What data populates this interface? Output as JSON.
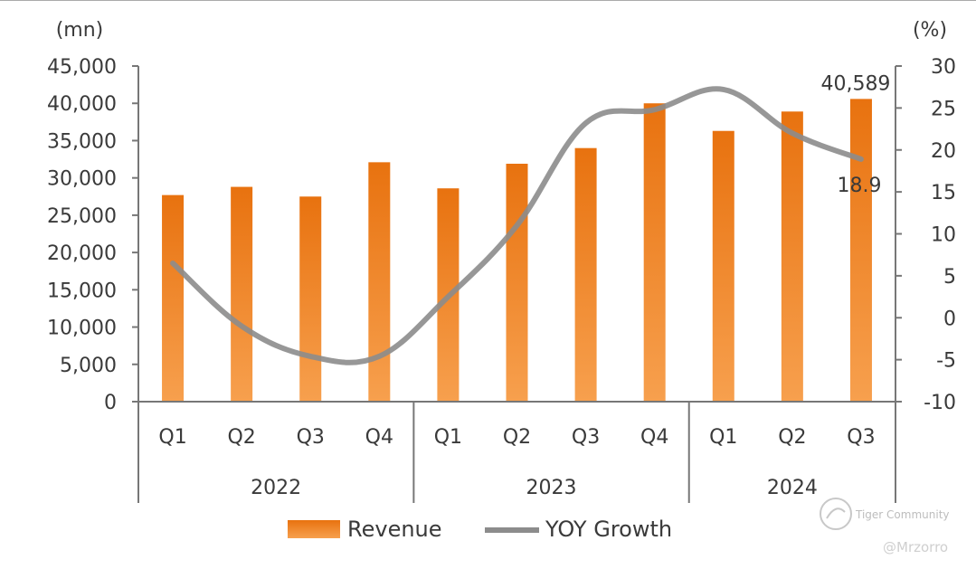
{
  "chart_data": {
    "type": "bar",
    "categories": [
      "Q1",
      "Q2",
      "Q3",
      "Q4",
      "Q1",
      "Q2",
      "Q3",
      "Q4",
      "Q1",
      "Q2",
      "Q3"
    ],
    "groups": [
      {
        "label": "2022",
        "count": 4
      },
      {
        "label": "2023",
        "count": 4
      },
      {
        "label": "2024",
        "count": 3
      }
    ],
    "series": [
      {
        "name": "Revenue",
        "type": "bar",
        "axis": "left",
        "color": "#ef7d1a",
        "values": [
          27700,
          28800,
          27500,
          32100,
          28600,
          31900,
          34000,
          40000,
          36300,
          38900,
          40589
        ]
      },
      {
        "name": "YOY Growth",
        "type": "line",
        "axis": "right",
        "color": "#8c8c8c",
        "values": [
          6.5,
          -1,
          -4.6,
          -4.6,
          2.5,
          11,
          23.2,
          24.8,
          27.2,
          22,
          18.9
        ]
      }
    ],
    "left_axis": {
      "unit": "(mn)",
      "ylim": [
        0,
        45000
      ],
      "ticks": [
        {
          "v": 0,
          "label": "0"
        },
        {
          "v": 5000,
          "label": "5,000"
        },
        {
          "v": 10000,
          "label": "10,000"
        },
        {
          "v": 15000,
          "label": "15,000"
        },
        {
          "v": 20000,
          "label": "20,000"
        },
        {
          "v": 25000,
          "label": "25,000"
        },
        {
          "v": 30000,
          "label": "30,000"
        },
        {
          "v": 35000,
          "label": "35,000"
        },
        {
          "v": 40000,
          "label": "40,000"
        },
        {
          "v": 45000,
          "label": "45,000"
        }
      ]
    },
    "right_axis": {
      "unit": "(%)",
      "ylim": [
        -10,
        30
      ],
      "ticks": [
        {
          "v": -10,
          "label": "-10"
        },
        {
          "v": -5,
          "label": "-5"
        },
        {
          "v": 0,
          "label": "0"
        },
        {
          "v": 5,
          "label": "5"
        },
        {
          "v": 10,
          "label": "10"
        },
        {
          "v": 15,
          "label": "15"
        },
        {
          "v": 20,
          "label": "20"
        },
        {
          "v": 25,
          "label": "25"
        },
        {
          "v": 30,
          "label": "30"
        }
      ]
    },
    "annotations": [
      {
        "text": "40,589",
        "series": "Revenue",
        "index": 10
      },
      {
        "text": "18.9",
        "series": "YOY Growth",
        "index": 10
      }
    ],
    "grid": false,
    "legend": "bottom"
  },
  "watermark": {
    "brand": "Tiger Community",
    "handle": "@Mrzorro"
  }
}
